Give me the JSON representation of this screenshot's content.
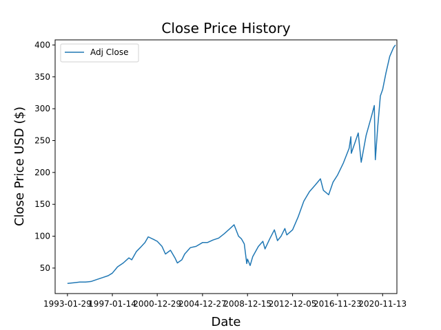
{
  "chart_data": {
    "type": "line",
    "title": "Close Price History",
    "xlabel": "Date",
    "ylabel": "Close Price USD ($)",
    "legend": {
      "placement": "top-left",
      "entries": [
        "Adj Close"
      ]
    },
    "grid": false,
    "xlim": [
      "1991-12-29",
      "2022-02-16"
    ],
    "ylim": [
      10,
      408
    ],
    "x_ticks": [
      "1993-01-29",
      "1997-01-14",
      "2000-12-29",
      "2004-12-27",
      "2008-12-15",
      "2012-12-05",
      "2016-11-23",
      "2020-11-13"
    ],
    "y_ticks": [
      50,
      100,
      150,
      200,
      250,
      300,
      350,
      400
    ],
    "colors": {
      "series": "#1f77b4",
      "axes": "#000000",
      "legend_border": "#cccccc"
    },
    "series": [
      {
        "name": "Adj Close",
        "x": [
          "1993-01-29",
          "1993-09-01",
          "1994-03-01",
          "1994-09-01",
          "1995-03-01",
          "1995-09-01",
          "1996-03-01",
          "1996-09-01",
          "1997-01-14",
          "1997-07-01",
          "1998-01-01",
          "1998-07-01",
          "1998-10-01",
          "1999-03-01",
          "1999-07-01",
          "1999-12-01",
          "2000-03-15",
          "2000-09-01",
          "2000-12-29",
          "2001-06-01",
          "2001-09-20",
          "2002-03-01",
          "2002-07-23",
          "2002-10-09",
          "2003-03-01",
          "2003-06-01",
          "2003-12-01",
          "2004-06-01",
          "2004-12-27",
          "2005-06-01",
          "2005-12-01",
          "2006-06-01",
          "2006-12-01",
          "2007-06-01",
          "2007-10-09",
          "2008-03-01",
          "2008-06-01",
          "2008-09-01",
          "2008-11-20",
          "2008-12-15",
          "2009-03-09",
          "2009-06-01",
          "2009-12-01",
          "2010-04-23",
          "2010-07-01",
          "2010-12-01",
          "2011-04-29",
          "2011-08-08",
          "2011-12-01",
          "2012-04-01",
          "2012-06-01",
          "2012-12-05",
          "2013-06-01",
          "2013-12-01",
          "2014-06-01",
          "2014-12-01",
          "2015-05-21",
          "2015-08-25",
          "2016-02-11",
          "2016-07-01",
          "2016-11-23",
          "2017-06-01",
          "2017-12-01",
          "2018-01-26",
          "2018-02-08",
          "2018-06-01",
          "2018-09-20",
          "2018-12-24",
          "2019-06-01",
          "2019-12-01",
          "2020-02-19",
          "2020-03-23",
          "2020-06-08",
          "2020-09-02",
          "2020-11-13",
          "2021-03-01",
          "2021-07-01",
          "2021-11-01",
          "2021-12-31"
        ],
        "y": [
          26,
          27,
          28,
          28,
          29,
          32,
          35,
          38,
          42,
          52,
          58,
          66,
          63,
          76,
          82,
          90,
          99,
          95,
          92,
          84,
          72,
          78,
          66,
          58,
          63,
          72,
          82,
          84,
          90,
          90,
          94,
          97,
          104,
          112,
          118,
          100,
          96,
          88,
          57,
          64,
          54,
          68,
          84,
          92,
          80,
          96,
          110,
          93,
          100,
          112,
          102,
          110,
          130,
          155,
          170,
          180,
          190,
          172,
          165,
          185,
          196,
          215,
          238,
          256,
          230,
          246,
          262,
          216,
          258,
          290,
          305,
          220,
          272,
          320,
          330,
          356,
          382,
          396,
          400
        ]
      }
    ]
  }
}
